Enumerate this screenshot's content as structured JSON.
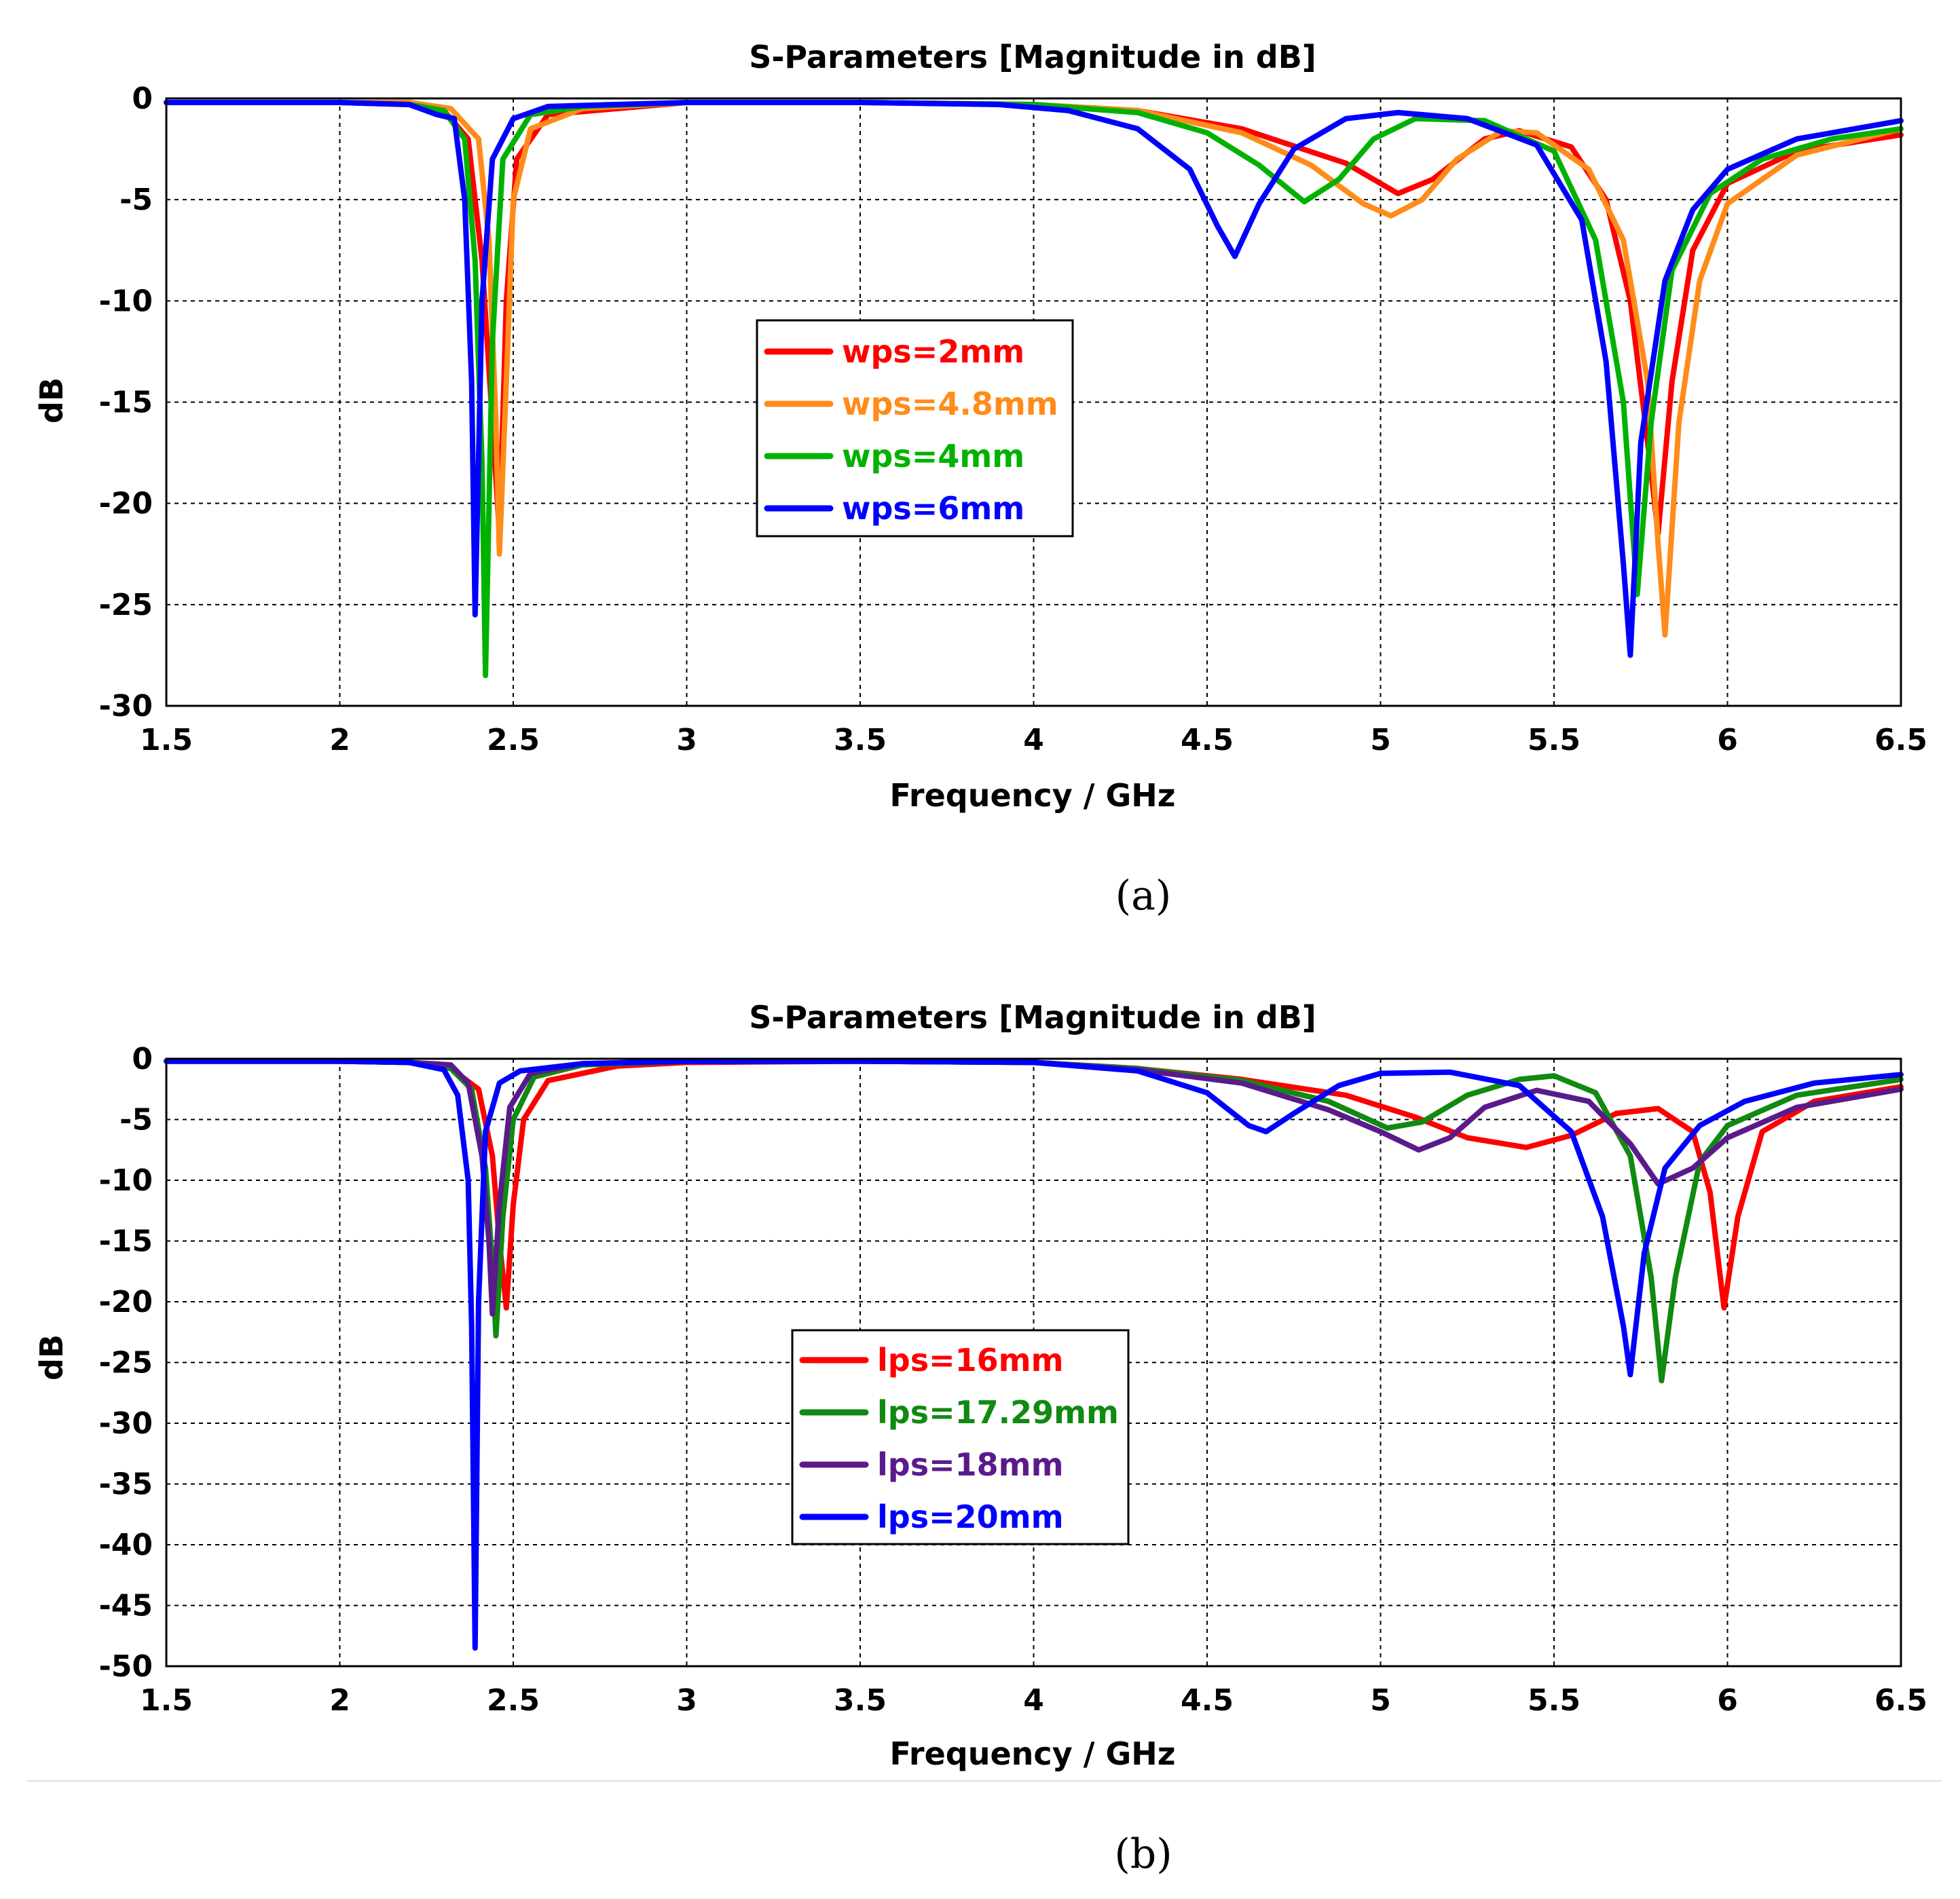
{
  "chart_data": [
    {
      "type": "line",
      "panel": "a",
      "title": "S-Parameters [Magnitude in dB]",
      "xlabel": "Frequency / GHz",
      "ylabel": "dB",
      "xlim": [
        1.5,
        6.5
      ],
      "ylim": [
        -30,
        0
      ],
      "xticks": [
        "1.5",
        "2",
        "2.5",
        "3",
        "3.5",
        "4",
        "4.5",
        "5",
        "5.5",
        "6",
        "6.5"
      ],
      "yticks": [
        "0",
        "-5",
        "-10",
        "-15",
        "-20",
        "-25",
        "-30"
      ],
      "grid": true,
      "legend_position": "center",
      "caption": "(a)",
      "series": [
        {
          "name": "wps=2mm",
          "color": "#ff0000",
          "points": [
            [
              1.5,
              -0.2
            ],
            [
              2.0,
              -0.2
            ],
            [
              2.2,
              -0.3
            ],
            [
              2.3,
              -0.6
            ],
            [
              2.37,
              -2
            ],
            [
              2.41,
              -8
            ],
            [
              2.44,
              -16
            ],
            [
              2.46,
              -21.5
            ],
            [
              2.48,
              -10
            ],
            [
              2.51,
              -3
            ],
            [
              2.6,
              -0.8
            ],
            [
              3.0,
              -0.2
            ],
            [
              3.5,
              -0.2
            ],
            [
              4.0,
              -0.3
            ],
            [
              4.3,
              -0.6
            ],
            [
              4.6,
              -1.5
            ],
            [
              4.9,
              -3.2
            ],
            [
              5.05,
              -4.7
            ],
            [
              5.15,
              -4
            ],
            [
              5.3,
              -2
            ],
            [
              5.4,
              -1.6
            ],
            [
              5.55,
              -2.4
            ],
            [
              5.65,
              -5
            ],
            [
              5.72,
              -10
            ],
            [
              5.77,
              -17
            ],
            [
              5.8,
              -21.5
            ],
            [
              5.84,
              -14
            ],
            [
              5.9,
              -7.5
            ],
            [
              6.0,
              -4.2
            ],
            [
              6.2,
              -2.6
            ],
            [
              6.5,
              -1.8
            ]
          ]
        },
        {
          "name": "wps=4.8mm",
          "color": "#ff8c1a",
          "points": [
            [
              1.5,
              -0.2
            ],
            [
              2.0,
              -0.2
            ],
            [
              2.2,
              -0.2
            ],
            [
              2.32,
              -0.5
            ],
            [
              2.4,
              -2
            ],
            [
              2.43,
              -7
            ],
            [
              2.45,
              -16
            ],
            [
              2.46,
              -22.5
            ],
            [
              2.48,
              -14
            ],
            [
              2.5,
              -5
            ],
            [
              2.55,
              -1.5
            ],
            [
              2.7,
              -0.5
            ],
            [
              3.0,
              -0.2
            ],
            [
              3.5,
              -0.2
            ],
            [
              4.0,
              -0.3
            ],
            [
              4.3,
              -0.6
            ],
            [
              4.6,
              -1.7
            ],
            [
              4.8,
              -3.3
            ],
            [
              4.95,
              -5.2
            ],
            [
              5.03,
              -5.8
            ],
            [
              5.12,
              -5
            ],
            [
              5.22,
              -3
            ],
            [
              5.35,
              -1.6
            ],
            [
              5.45,
              -1.7
            ],
            [
              5.6,
              -3.5
            ],
            [
              5.7,
              -7
            ],
            [
              5.77,
              -14
            ],
            [
              5.8,
              -22
            ],
            [
              5.82,
              -26.5
            ],
            [
              5.86,
              -16
            ],
            [
              5.92,
              -9
            ],
            [
              6.0,
              -5.2
            ],
            [
              6.2,
              -2.8
            ],
            [
              6.5,
              -1.5
            ]
          ]
        },
        {
          "name": "wps=4mm",
          "color": "#00b200",
          "points": [
            [
              1.5,
              -0.2
            ],
            [
              2.0,
              -0.2
            ],
            [
              2.2,
              -0.3
            ],
            [
              2.3,
              -0.6
            ],
            [
              2.36,
              -2
            ],
            [
              2.39,
              -8
            ],
            [
              2.41,
              -18
            ],
            [
              2.42,
              -28.5
            ],
            [
              2.44,
              -12
            ],
            [
              2.47,
              -3
            ],
            [
              2.55,
              -0.8
            ],
            [
              2.7,
              -0.4
            ],
            [
              3.0,
              -0.2
            ],
            [
              3.5,
              -0.2
            ],
            [
              4.0,
              -0.3
            ],
            [
              4.3,
              -0.7
            ],
            [
              4.5,
              -1.7
            ],
            [
              4.65,
              -3.3
            ],
            [
              4.78,
              -5.1
            ],
            [
              4.88,
              -4
            ],
            [
              4.98,
              -2
            ],
            [
              5.1,
              -1
            ],
            [
              5.3,
              -1.1
            ],
            [
              5.5,
              -2.6
            ],
            [
              5.62,
              -7
            ],
            [
              5.7,
              -15
            ],
            [
              5.74,
              -24.5
            ],
            [
              5.78,
              -16
            ],
            [
              5.84,
              -8.5
            ],
            [
              5.95,
              -4.7
            ],
            [
              6.1,
              -3
            ],
            [
              6.3,
              -2
            ],
            [
              6.5,
              -1.5
            ]
          ]
        },
        {
          "name": "wps=6mm",
          "color": "#0000ff",
          "points": [
            [
              1.5,
              -0.2
            ],
            [
              2.0,
              -0.2
            ],
            [
              2.2,
              -0.3
            ],
            [
              2.28,
              -0.8
            ],
            [
              2.33,
              -1
            ],
            [
              2.36,
              -5
            ],
            [
              2.38,
              -14
            ],
            [
              2.39,
              -25.5
            ],
            [
              2.41,
              -10
            ],
            [
              2.44,
              -3
            ],
            [
              2.5,
              -1
            ],
            [
              2.6,
              -0.4
            ],
            [
              3.0,
              -0.2
            ],
            [
              3.5,
              -0.2
            ],
            [
              3.9,
              -0.3
            ],
            [
              4.1,
              -0.6
            ],
            [
              4.3,
              -1.5
            ],
            [
              4.45,
              -3.5
            ],
            [
              4.53,
              -6.3
            ],
            [
              4.58,
              -7.8
            ],
            [
              4.65,
              -5.2
            ],
            [
              4.75,
              -2.5
            ],
            [
              4.9,
              -1
            ],
            [
              5.05,
              -0.7
            ],
            [
              5.25,
              -1
            ],
            [
              5.45,
              -2.3
            ],
            [
              5.58,
              -6
            ],
            [
              5.65,
              -13
            ],
            [
              5.7,
              -23
            ],
            [
              5.72,
              -27.5
            ],
            [
              5.75,
              -17
            ],
            [
              5.82,
              -9
            ],
            [
              5.9,
              -5.5
            ],
            [
              6.0,
              -3.5
            ],
            [
              6.2,
              -2
            ],
            [
              6.5,
              -1.1
            ]
          ]
        }
      ]
    },
    {
      "type": "line",
      "panel": "b",
      "title": "S-Parameters [Magnitude in dB]",
      "xlabel": "Frequency / GHz",
      "ylabel": "dB",
      "xlim": [
        1.5,
        6.5
      ],
      "ylim": [
        -50,
        0
      ],
      "xticks": [
        "1.5",
        "2",
        "2.5",
        "3",
        "3.5",
        "4",
        "4.5",
        "5",
        "5.5",
        "6",
        "6.5"
      ],
      "yticks": [
        "0",
        "-5",
        "-10",
        "-15",
        "-20",
        "-25",
        "-30",
        "-35",
        "-40",
        "-45",
        "-50"
      ],
      "grid": true,
      "legend_position": "center",
      "caption": "(b)",
      "series": [
        {
          "name": "lps=16mm",
          "color": "#ff0000",
          "points": [
            [
              1.5,
              -0.2
            ],
            [
              2.0,
              -0.2
            ],
            [
              2.2,
              -0.3
            ],
            [
              2.32,
              -0.8
            ],
            [
              2.4,
              -2.5
            ],
            [
              2.44,
              -8
            ],
            [
              2.46,
              -15
            ],
            [
              2.48,
              -20.5
            ],
            [
              2.5,
              -12
            ],
            [
              2.53,
              -5
            ],
            [
              2.6,
              -1.8
            ],
            [
              2.8,
              -0.6
            ],
            [
              3.0,
              -0.3
            ],
            [
              3.5,
              -0.2
            ],
            [
              4.0,
              -0.3
            ],
            [
              4.3,
              -0.8
            ],
            [
              4.6,
              -1.7
            ],
            [
              4.9,
              -3
            ],
            [
              5.1,
              -4.8
            ],
            [
              5.25,
              -6.5
            ],
            [
              5.42,
              -7.3
            ],
            [
              5.55,
              -6.3
            ],
            [
              5.68,
              -4.5
            ],
            [
              5.8,
              -4.1
            ],
            [
              5.9,
              -6
            ],
            [
              5.95,
              -11
            ],
            [
              5.99,
              -20.5
            ],
            [
              6.03,
              -13
            ],
            [
              6.1,
              -6
            ],
            [
              6.25,
              -3.5
            ],
            [
              6.5,
              -2.3
            ]
          ]
        },
        {
          "name": "lps=17.29mm",
          "color": "#108a10",
          "points": [
            [
              1.5,
              -0.2
            ],
            [
              2.0,
              -0.2
            ],
            [
              2.2,
              -0.3
            ],
            [
              2.32,
              -0.8
            ],
            [
              2.38,
              -2.5
            ],
            [
              2.42,
              -9
            ],
            [
              2.44,
              -17
            ],
            [
              2.45,
              -22.8
            ],
            [
              2.47,
              -13
            ],
            [
              2.5,
              -5
            ],
            [
              2.56,
              -1.5
            ],
            [
              2.7,
              -0.5
            ],
            [
              3.0,
              -0.2
            ],
            [
              3.5,
              -0.2
            ],
            [
              4.0,
              -0.3
            ],
            [
              4.3,
              -0.8
            ],
            [
              4.6,
              -1.8
            ],
            [
              4.85,
              -3.5
            ],
            [
              5.02,
              -5.7
            ],
            [
              5.12,
              -5.2
            ],
            [
              5.25,
              -3
            ],
            [
              5.4,
              -1.7
            ],
            [
              5.5,
              -1.4
            ],
            [
              5.62,
              -2.8
            ],
            [
              5.72,
              -8
            ],
            [
              5.78,
              -18
            ],
            [
              5.81,
              -26.5
            ],
            [
              5.85,
              -18
            ],
            [
              5.92,
              -8.5
            ],
            [
              6.0,
              -5.5
            ],
            [
              6.2,
              -3
            ],
            [
              6.5,
              -1.7
            ]
          ]
        },
        {
          "name": "lps=18mm",
          "color": "#5a1a8c",
          "points": [
            [
              1.5,
              -0.2
            ],
            [
              2.0,
              -0.2
            ],
            [
              2.2,
              -0.3
            ],
            [
              2.32,
              -0.5
            ],
            [
              2.37,
              -2
            ],
            [
              2.41,
              -8
            ],
            [
              2.43,
              -15
            ],
            [
              2.44,
              -21
            ],
            [
              2.46,
              -12
            ],
            [
              2.49,
              -4
            ],
            [
              2.55,
              -1.2
            ],
            [
              2.7,
              -0.4
            ],
            [
              3.0,
              -0.2
            ],
            [
              3.5,
              -0.2
            ],
            [
              4.0,
              -0.3
            ],
            [
              4.3,
              -0.9
            ],
            [
              4.6,
              -2
            ],
            [
              4.85,
              -4.2
            ],
            [
              5.0,
              -6
            ],
            [
              5.11,
              -7.5
            ],
            [
              5.2,
              -6.5
            ],
            [
              5.3,
              -4
            ],
            [
              5.45,
              -2.6
            ],
            [
              5.6,
              -3.5
            ],
            [
              5.72,
              -7
            ],
            [
              5.8,
              -10.3
            ],
            [
              5.9,
              -9
            ],
            [
              6.0,
              -6.5
            ],
            [
              6.2,
              -4
            ],
            [
              6.5,
              -2.5
            ]
          ]
        },
        {
          "name": "lps=20mm",
          "color": "#0000ff",
          "points": [
            [
              1.5,
              -0.2
            ],
            [
              2.0,
              -0.2
            ],
            [
              2.2,
              -0.3
            ],
            [
              2.3,
              -0.9
            ],
            [
              2.34,
              -3
            ],
            [
              2.37,
              -10
            ],
            [
              2.38,
              -22
            ],
            [
              2.39,
              -48.5
            ],
            [
              2.4,
              -20
            ],
            [
              2.42,
              -6
            ],
            [
              2.46,
              -2
            ],
            [
              2.52,
              -1
            ],
            [
              2.7,
              -0.4
            ],
            [
              3.0,
              -0.2
            ],
            [
              3.5,
              -0.2
            ],
            [
              4.0,
              -0.3
            ],
            [
              4.3,
              -1
            ],
            [
              4.5,
              -2.8
            ],
            [
              4.62,
              -5.5
            ],
            [
              4.67,
              -6
            ],
            [
              4.75,
              -4.5
            ],
            [
              4.88,
              -2.2
            ],
            [
              5.0,
              -1.2
            ],
            [
              5.2,
              -1.1
            ],
            [
              5.4,
              -2.2
            ],
            [
              5.55,
              -6
            ],
            [
              5.64,
              -13
            ],
            [
              5.7,
              -22
            ],
            [
              5.72,
              -26
            ],
            [
              5.76,
              -16
            ],
            [
              5.82,
              -9
            ],
            [
              5.92,
              -5.5
            ],
            [
              6.05,
              -3.5
            ],
            [
              6.25,
              -2
            ],
            [
              6.5,
              -1.3
            ]
          ]
        }
      ]
    }
  ]
}
